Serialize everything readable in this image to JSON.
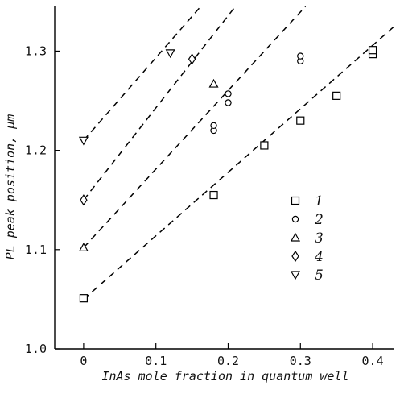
{
  "chart_data": {
    "type": "scatter",
    "title": "",
    "xlabel": "InAs mole fraction in quantum well",
    "ylabel": "PL peak position, μm",
    "xlim": [
      -0.04,
      0.43
    ],
    "ylim": [
      1.0,
      1.345
    ],
    "x_ticks": [
      0,
      0.1,
      0.2,
      0.3,
      0.4
    ],
    "x_tick_labels": [
      "0",
      "0.1",
      "0.2",
      "0.3",
      "0.4"
    ],
    "y_ticks": [
      1.0,
      1.1,
      1.2,
      1.3
    ],
    "y_tick_labels": [
      "1.0",
      "1.1",
      "1.2",
      "1.3"
    ],
    "grid": false,
    "legend_position": "right",
    "series": [
      {
        "name": "1",
        "marker": "square",
        "points": [
          [
            0,
            1.051
          ],
          [
            0.18,
            1.155
          ],
          [
            0.25,
            1.205
          ],
          [
            0.3,
            1.23
          ],
          [
            0.35,
            1.255
          ],
          [
            0.4,
            1.297
          ],
          [
            0.4,
            1.301
          ]
        ],
        "fit": [
          [
            0,
            1.05
          ],
          [
            0.43,
            1.325
          ]
        ]
      },
      {
        "name": "2",
        "marker": "circle",
        "points": [
          [
            0.18,
            1.22
          ],
          [
            0.18,
            1.225
          ],
          [
            0.2,
            1.248
          ],
          [
            0.2,
            1.257
          ],
          [
            0.3,
            1.29
          ],
          [
            0.3,
            1.295
          ]
        ],
        "fit": []
      },
      {
        "name": "3",
        "marker": "triangle-up",
        "points": [
          [
            0,
            1.102
          ],
          [
            0.18,
            1.267
          ]
        ],
        "fit": [
          [
            0,
            1.102
          ],
          [
            0.307,
            1.345
          ]
        ]
      },
      {
        "name": "4",
        "marker": "diamond",
        "points": [
          [
            0,
            1.15
          ],
          [
            0.15,
            1.292
          ]
        ],
        "fit": [
          [
            0,
            1.15
          ],
          [
            0.21,
            1.345
          ]
        ]
      },
      {
        "name": "5",
        "marker": "triangle-down",
        "points": [
          [
            0,
            1.21
          ],
          [
            0.12,
            1.298
          ]
        ],
        "fit": [
          [
            0,
            1.21
          ],
          [
            0.162,
            1.345
          ]
        ]
      }
    ]
  }
}
